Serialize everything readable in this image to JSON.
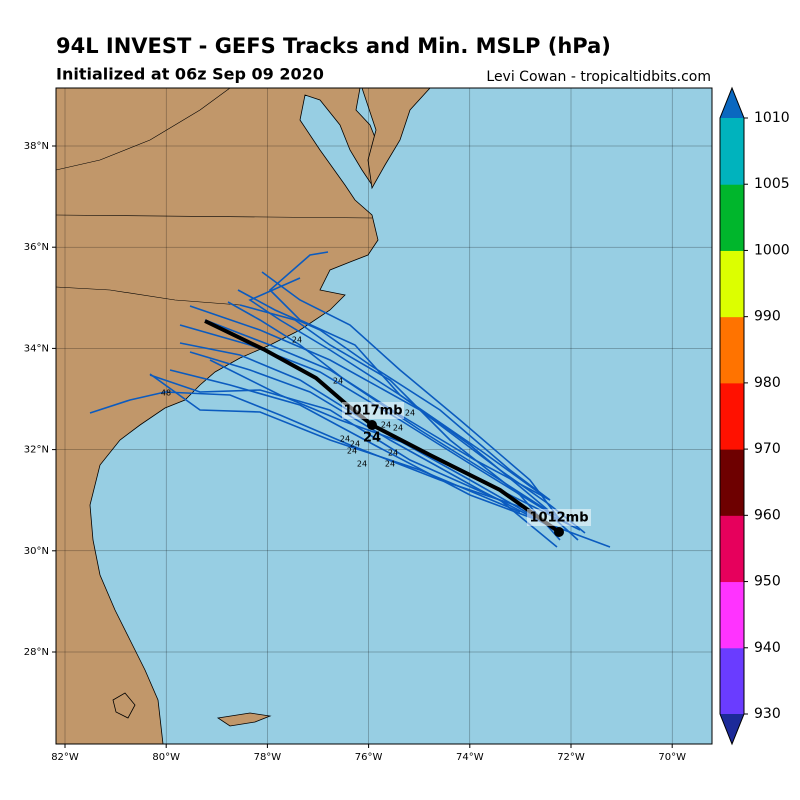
{
  "header": {
    "title": "94L INVEST - GEFS Tracks and Min. MSLP (hPa)",
    "subtitle": "Initialized at 06z Sep 09 2020",
    "credit": "Levi Cowan - tropicaltidbits.com"
  },
  "map": {
    "lon_labels": [
      "82°W",
      "80°W",
      "78°W",
      "76°W",
      "74°W",
      "72°W",
      "70°W"
    ],
    "lat_labels": [
      "38°N",
      "36°N",
      "34°N",
      "32°N",
      "30°N",
      "28°N"
    ]
  },
  "colorbar": {
    "ticks": [
      930,
      940,
      950,
      960,
      970,
      980,
      990,
      1000,
      1005,
      1010
    ],
    "colors": [
      "#6a3cff",
      "#ff33ff",
      "#e6005c",
      "#6e0000",
      "#ff1100",
      "#ff7300",
      "#dcff00",
      "#00b62c",
      "#00b3bd"
    ],
    "under_color": "#1c2a99",
    "over_color": "#0a68c0"
  },
  "annotations": {
    "start_pressure": "1017mb",
    "end_pressure": "1012mb",
    "mean_hour": "24",
    "member_hours": [
      "24",
      "24",
      "24",
      "24",
      "24",
      "24",
      "24",
      "24",
      "24",
      "24",
      "24",
      "48"
    ]
  }
}
